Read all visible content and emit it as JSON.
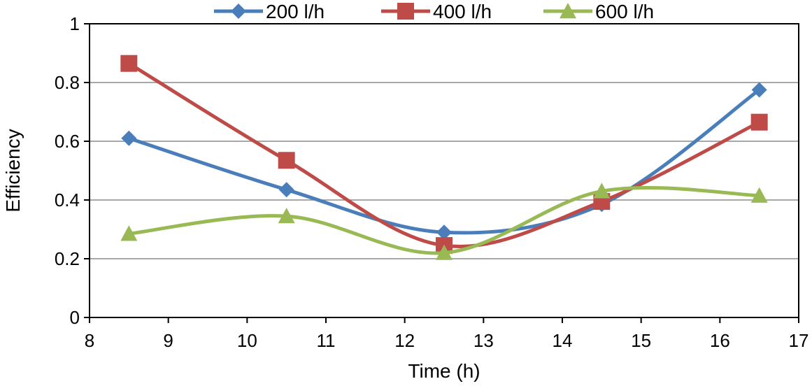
{
  "chart_data": {
    "type": "line",
    "title": "",
    "xlabel": "Time (h)",
    "ylabel": "Efficiency",
    "xlim": [
      8,
      17
    ],
    "ylim": [
      0,
      1
    ],
    "x_ticks": [
      "8",
      "9",
      "10",
      "11",
      "12",
      "13",
      "14",
      "15",
      "16",
      "17"
    ],
    "y_ticks": [
      "0",
      "0.2",
      "0.4",
      "0.6",
      "0.8",
      "1"
    ],
    "grid": "horizontal",
    "legend_position": "top",
    "x": [
      8.5,
      10.5,
      12.5,
      14.5,
      16.5
    ],
    "series": [
      {
        "name": "200 l/h",
        "marker": "diamond",
        "color": "#4A7EBB",
        "values": [
          0.61,
          0.435,
          0.29,
          0.385,
          0.775
        ]
      },
      {
        "name": "400 l/h",
        "marker": "square",
        "color": "#BE4B48",
        "values": [
          0.865,
          0.535,
          0.245,
          0.395,
          0.665
        ]
      },
      {
        "name": "600 l/h",
        "marker": "triangle",
        "color": "#98B954",
        "values": [
          0.285,
          0.345,
          0.22,
          0.43,
          0.415
        ]
      }
    ]
  }
}
